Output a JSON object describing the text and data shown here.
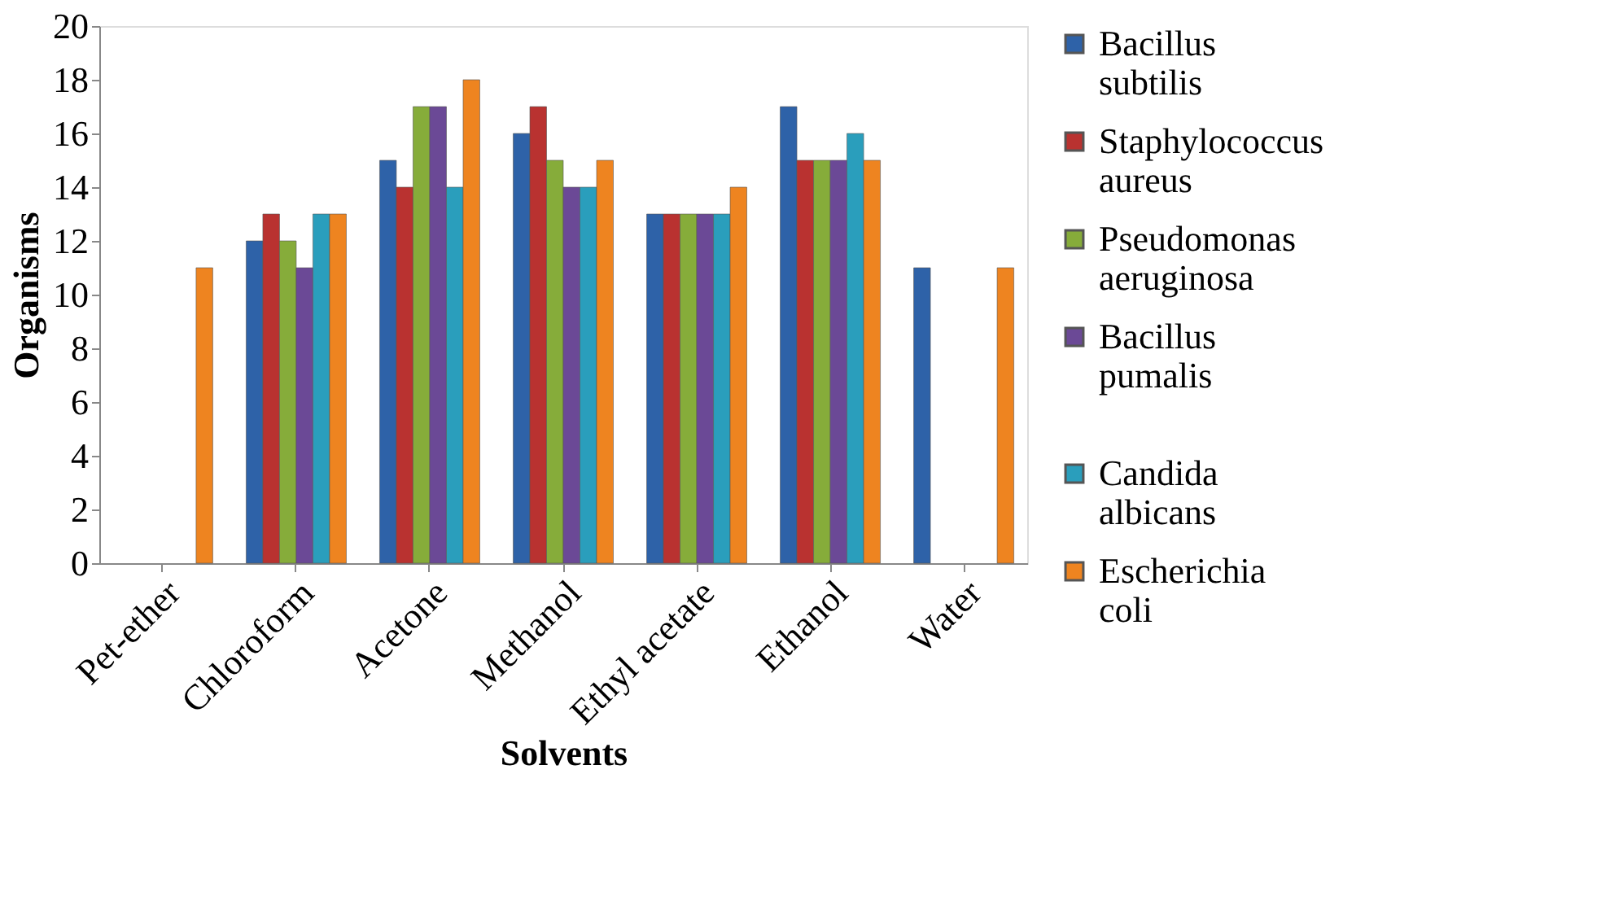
{
  "chart_data": {
    "type": "bar",
    "xlabel": "Solvents",
    "ylabel": "Organisms",
    "categories": [
      "Pet-ether",
      "Chloroform",
      "Acetone",
      "Methanol",
      "Ethyl acetate",
      "Ethanol",
      "Water"
    ],
    "series": [
      {
        "name": "Bacillus subtilis",
        "color": "#2e62a8",
        "values": [
          null,
          12,
          15,
          16,
          13,
          17,
          11
        ]
      },
      {
        "name": "Staphylococcus aureus",
        "color": "#b93230",
        "values": [
          null,
          13,
          14,
          17,
          13,
          15,
          null
        ]
      },
      {
        "name": "Pseudomonas aeruginosa",
        "color": "#86ac3a",
        "values": [
          null,
          12,
          17,
          15,
          13,
          15,
          null
        ]
      },
      {
        "name": "Bacillus  pumalis",
        "color": "#6b4996",
        "values": [
          null,
          11,
          17,
          14,
          13,
          15,
          null
        ]
      },
      {
        "name": "Candida albicans",
        "color": "#2a9ebc",
        "values": [
          null,
          13,
          14,
          14,
          13,
          16,
          null
        ]
      },
      {
        "name": "Escherichia coli",
        "color": "#ee8420",
        "values": [
          11,
          13,
          18,
          15,
          14,
          15,
          11
        ]
      }
    ],
    "ylim": [
      0,
      20
    ],
    "yticks": [
      0,
      2,
      4,
      6,
      8,
      10,
      12,
      14,
      16,
      18,
      20
    ],
    "grid": false,
    "legend": "right"
  }
}
